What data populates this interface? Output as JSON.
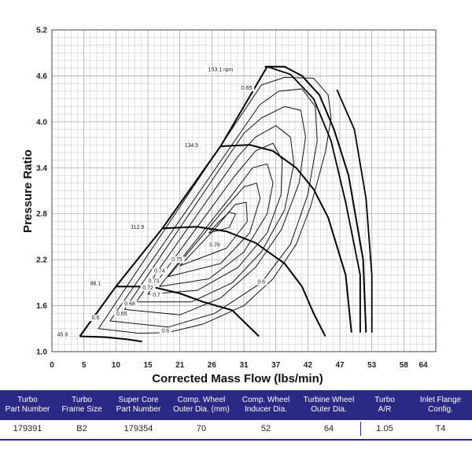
{
  "chart_data": {
    "type": "line",
    "title": "",
    "xlabel": "Corrected Mass Flow (lbs/min)",
    "ylabel": "Pressure Ratio",
    "xlim": [
      0,
      66
    ],
    "ylim": [
      1.0,
      5.2
    ],
    "x_ticks": [
      "0",
      "5",
      "10",
      "15",
      "21",
      "26",
      "31",
      "37",
      "42",
      "47",
      "53",
      "58",
      "64"
    ],
    "y_ticks": [
      "1.0",
      "1.6",
      "2.2",
      "2.8",
      "3.4",
      "4.0",
      "4.6",
      "5.2"
    ],
    "grid": true,
    "surge_line": [
      [
        4.8,
        1.2
      ],
      [
        11,
        1.85
      ],
      [
        19,
        2.61
      ],
      [
        29,
        3.68
      ],
      [
        37,
        4.72
      ]
    ],
    "choke_line": [
      [
        37,
        4.72
      ],
      [
        41,
        4.62
      ],
      [
        45,
        4.3
      ],
      [
        48,
        3.75
      ],
      [
        50.5,
        2.95
      ],
      [
        53,
        2.0
      ],
      [
        53,
        1.25
      ]
    ],
    "outer_choke_line": [
      [
        49,
        4.42
      ],
      [
        52,
        3.9
      ],
      [
        54,
        3.0
      ],
      [
        55,
        2.0
      ],
      [
        55,
        1.25
      ]
    ],
    "speed_lines": [
      {
        "label": "45.9",
        "points": [
          [
            4.8,
            1.2
          ],
          [
            9,
            1.19
          ],
          [
            13,
            1.16
          ],
          [
            15.5,
            1.13
          ]
        ]
      },
      {
        "label": "86.1",
        "points": [
          [
            11,
            1.85
          ],
          [
            17,
            1.85
          ],
          [
            22,
            1.76
          ],
          [
            26,
            1.65
          ],
          [
            31,
            1.54
          ],
          [
            35.6,
            1.2
          ]
        ]
      },
      {
        "label": "112.9",
        "points": [
          [
            19,
            2.61
          ],
          [
            25,
            2.63
          ],
          [
            30,
            2.57
          ],
          [
            35,
            2.42
          ],
          [
            40,
            2.15
          ],
          [
            43,
            1.85
          ],
          [
            45,
            1.5
          ],
          [
            47,
            1.2
          ]
        ]
      },
      {
        "label": "134.5",
        "points": [
          [
            29,
            3.68
          ],
          [
            34,
            3.7
          ],
          [
            38,
            3.62
          ],
          [
            42,
            3.4
          ],
          [
            45,
            3.12
          ],
          [
            47.5,
            2.75
          ],
          [
            50.5,
            2.0
          ],
          [
            51.5,
            1.25
          ]
        ]
      },
      {
        "label": "153.1 rpm",
        "points": [
          [
            36.6,
            4.72
          ],
          [
            40,
            4.72
          ],
          [
            43,
            4.6
          ],
          [
            46,
            4.35
          ],
          [
            48.5,
            3.9
          ],
          [
            51,
            3.3
          ],
          [
            53.5,
            2.2
          ],
          [
            54,
            1.25
          ]
        ]
      }
    ],
    "efficiency_islands": [
      {
        "label": "0.6",
        "points": [
          [
            8,
            1.3
          ],
          [
            15,
            1.24
          ],
          [
            20,
            1.25
          ],
          [
            26,
            1.36
          ],
          [
            33,
            1.6
          ],
          [
            38,
            1.95
          ],
          [
            42,
            2.4
          ],
          [
            44.5,
            2.9
          ],
          [
            47,
            3.6
          ],
          [
            48,
            4.05
          ],
          [
            47.5,
            4.35
          ],
          [
            45,
            4.57
          ],
          [
            40,
            4.58
          ],
          [
            36,
            4.48
          ]
        ]
      },
      {
        "label": "0.65",
        "points": [
          [
            10,
            1.4
          ],
          [
            20,
            1.32
          ],
          [
            28,
            1.5
          ],
          [
            36,
            1.9
          ],
          [
            41,
            2.4
          ],
          [
            44,
            3.05
          ],
          [
            45.6,
            3.75
          ],
          [
            45.3,
            4.2
          ],
          [
            43,
            4.43
          ],
          [
            39,
            4.4
          ],
          [
            35.7,
            4.22
          ]
        ]
      },
      {
        "label": "0.68",
        "points": [
          [
            12.5,
            1.55
          ],
          [
            22,
            1.48
          ],
          [
            29,
            1.7
          ],
          [
            35,
            2.1
          ],
          [
            39.5,
            2.6
          ],
          [
            42.5,
            3.2
          ],
          [
            43.6,
            3.8
          ],
          [
            42.8,
            4.15
          ],
          [
            40,
            4.2
          ],
          [
            36,
            4.05
          ],
          [
            33,
            3.85
          ]
        ]
      },
      {
        "label": "0.7",
        "points": [
          [
            14.5,
            1.65
          ],
          [
            24,
            1.65
          ],
          [
            31,
            1.9
          ],
          [
            36,
            2.3
          ],
          [
            40,
            2.85
          ],
          [
            41.6,
            3.45
          ],
          [
            41,
            3.8
          ],
          [
            38.5,
            3.95
          ],
          [
            35,
            3.8
          ],
          [
            32,
            3.55
          ]
        ]
      },
      {
        "label": "0.72",
        "points": [
          [
            16.5,
            1.75
          ],
          [
            25,
            1.8
          ],
          [
            32,
            2.1
          ],
          [
            37,
            2.55
          ],
          [
            39.4,
            3.05
          ],
          [
            39.6,
            3.5
          ],
          [
            38,
            3.72
          ],
          [
            35,
            3.62
          ],
          [
            31.5,
            3.3
          ]
        ]
      },
      {
        "label": "0.73",
        "points": [
          [
            18.5,
            1.85
          ],
          [
            27,
            1.95
          ],
          [
            33,
            2.3
          ],
          [
            37,
            2.8
          ],
          [
            38,
            3.2
          ],
          [
            37,
            3.45
          ],
          [
            34.5,
            3.4
          ],
          [
            31,
            3.05
          ]
        ]
      },
      {
        "label": "0.74",
        "points": [
          [
            20,
            1.98
          ],
          [
            29,
            2.15
          ],
          [
            34,
            2.55
          ],
          [
            35.8,
            3.0
          ],
          [
            35.2,
            3.2
          ],
          [
            33,
            3.15
          ],
          [
            29,
            2.8
          ]
        ]
      },
      {
        "label": "0.75",
        "points": [
          [
            22,
            2.12
          ],
          [
            30,
            2.35
          ],
          [
            33.6,
            2.7
          ],
          [
            33.4,
            2.95
          ],
          [
            31.5,
            2.92
          ],
          [
            28,
            2.6
          ]
        ]
      },
      {
        "label": "0.76",
        "points": [
          [
            27,
            2.55
          ],
          [
            30.5,
            2.62
          ],
          [
            31.6,
            2.8
          ],
          [
            30.5,
            2.82
          ],
          [
            28.5,
            2.68
          ]
        ]
      }
    ],
    "annotations": [
      {
        "text": "153.1 rpm",
        "x": 29,
        "y": 4.66
      },
      {
        "text": "134.5",
        "x": 24,
        "y": 3.67
      },
      {
        "text": "112.9",
        "x": 14.7,
        "y": 2.6
      },
      {
        "text": "86.1",
        "x": 7.5,
        "y": 1.87
      },
      {
        "text": "45.9",
        "x": 1.8,
        "y": 1.2
      },
      {
        "text": "0.65",
        "x": 33.5,
        "y": 4.42
      },
      {
        "text": "0.6",
        "x": 7.5,
        "y": 1.42
      },
      {
        "text": "0.65",
        "x": 12,
        "y": 1.47
      },
      {
        "text": "0.68",
        "x": 13.4,
        "y": 1.6
      },
      {
        "text": "0.7",
        "x": 18,
        "y": 1.72
      },
      {
        "text": "0.72",
        "x": 16.5,
        "y": 1.81
      },
      {
        "text": "0.73",
        "x": 17.5,
        "y": 1.9
      },
      {
        "text": "0.74",
        "x": 18.5,
        "y": 2.03
      },
      {
        "text": "0.75",
        "x": 21.5,
        "y": 2.18
      },
      {
        "text": "0.76",
        "x": 28,
        "y": 2.37
      },
      {
        "text": "0.6",
        "x": 36,
        "y": 1.89
      },
      {
        "text": "0.6",
        "x": 19.5,
        "y": 1.25
      }
    ]
  },
  "spec_table": {
    "headers": [
      [
        "Turbo",
        "Part Number"
      ],
      [
        "Turbo",
        "Frame Size"
      ],
      [
        "Super Core",
        "Part Number"
      ],
      [
        "Comp. Wheel",
        "Outer Dia. (mm)"
      ],
      [
        "Comp. Wheel",
        "Inducer Dia."
      ],
      [
        "Turbine Wheel",
        "Outer Dia."
      ],
      [
        "Turbo",
        "A/R"
      ],
      [
        "Inlet Flange",
        "Config."
      ]
    ],
    "values": [
      "179391",
      "B2",
      "179354",
      "70",
      "52",
      "64",
      "1.05",
      "T4"
    ]
  }
}
